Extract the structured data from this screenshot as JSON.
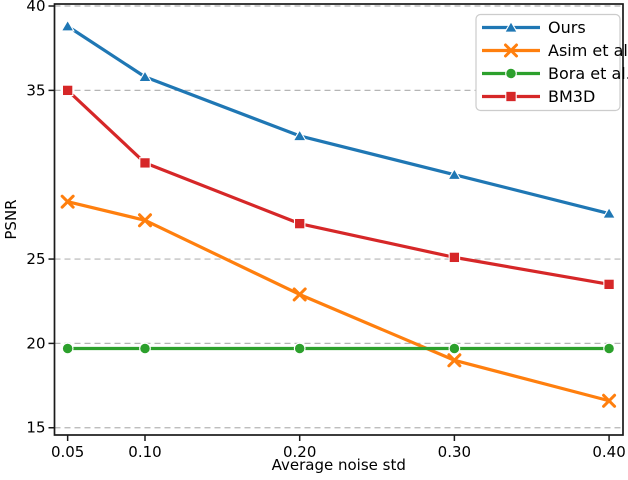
{
  "figure": {
    "background": "#ffffff",
    "text_color": "#000000",
    "spine_color": "#1a1a1a"
  },
  "chart_data": {
    "type": "line",
    "title": "",
    "xlabel": "Average noise std",
    "ylabel": "PSNR",
    "x": [
      0.05,
      0.1,
      0.2,
      0.3,
      0.4
    ],
    "x_tick_labels": [
      "0.05",
      "0.10",
      "0.20",
      "0.30",
      "0.40"
    ],
    "y_ticks": [
      15,
      20,
      25,
      35,
      40
    ],
    "y_tick_labels": [
      "15",
      "20",
      "25",
      "35",
      "40"
    ],
    "xlim": [
      0.0415,
      0.409
    ],
    "ylim": [
      14.57,
      40.12
    ],
    "grid": {
      "on": true,
      "axis": "y",
      "style": "dashed",
      "color": "#b5b5b5"
    },
    "legend": {
      "position": "upper right",
      "border_color": "#cccccc",
      "background": "#ffffff",
      "entries": [
        "Ours",
        "Asim et al.",
        "Bora et al.",
        "BM3D"
      ]
    },
    "series": [
      {
        "name": "Ours",
        "color": "#1f77b4",
        "marker": "triangle-up",
        "values": [
          38.8,
          35.8,
          32.3,
          30.0,
          27.7
        ]
      },
      {
        "name": "Asim et al.",
        "color": "#ff7f0e",
        "marker": "x",
        "values": [
          28.4,
          27.3,
          22.9,
          19.0,
          16.6
        ]
      },
      {
        "name": "Bora et al.",
        "color": "#2ca02c",
        "marker": "circle",
        "values": [
          19.7,
          19.7,
          19.7,
          19.7,
          19.7
        ]
      },
      {
        "name": "BM3D",
        "color": "#d62728",
        "marker": "square",
        "values": [
          35.0,
          30.7,
          27.1,
          25.1,
          23.5
        ]
      }
    ]
  }
}
